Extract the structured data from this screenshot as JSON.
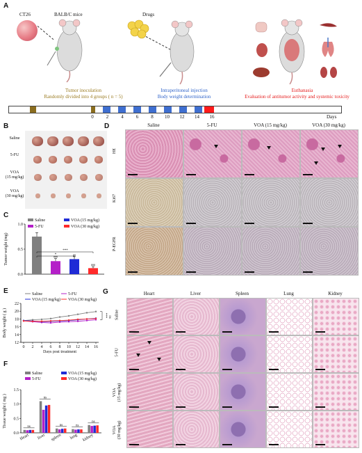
{
  "panels": {
    "a": "A",
    "b": "B",
    "c": "C",
    "d": "D",
    "e": "E",
    "f": "F",
    "g": "G"
  },
  "panel_a": {
    "cell_line": "CT26",
    "mice": "BALB/C mice",
    "drugs": "Drugs",
    "phase1_line1": "Tumor inoculation",
    "phase1_line2": "Randomly divided into  4 groups ( n = 5)",
    "phase2_line1": "Intraperitoneal injection",
    "phase2_line2": "Body weight determination",
    "phase3_line1": "Euthanasia",
    "phase3_line2": "Evaluation of antitumor activity and systemic toxicity",
    "ticks": [
      "0",
      "2",
      "4",
      "6",
      "8",
      "10",
      "12",
      "14",
      "16"
    ],
    "days_label": "Days",
    "colors": {
      "inoculation": "#8a6d1f",
      "injection": "#3f6fd0",
      "euthanasia": "#ff1a1a",
      "phase1_text": "#9a7b20",
      "phase2_text": "#2f63c9",
      "phase3_text": "#e51919"
    }
  },
  "panel_b": {
    "rows": [
      "Saline",
      "5-FU",
      "VOA\n(15 mg/kg)",
      "VOA\n(30 mg/kg)"
    ]
  },
  "panel_c": {
    "ylabel": "Tumor weight (mg)",
    "legend": [
      {
        "name": "Saline",
        "color": "#808080"
      },
      {
        "name": "VOA (15 mg/kg)",
        "color": "#1f2bd6"
      },
      {
        "name": "5-FU",
        "color": "#b41fc8"
      },
      {
        "name": "VOA (30 mg/kg)",
        "color": "#ff2a2a"
      }
    ],
    "sig_labels": [
      "***",
      "*"
    ],
    "bar_sig": [
      "",
      "###",
      "##",
      "###"
    ]
  },
  "panel_d": {
    "columns": [
      "Saline",
      "5-FU",
      "VOA (15 mg/kg)",
      "VOA (30 mg/kg)"
    ],
    "rows": [
      "HE",
      "Ki67",
      "P-EGFR"
    ]
  },
  "panel_e": {
    "legend": [
      "Saline",
      "5-FU",
      "VOA (15 mg/kg)",
      "VOA (30 mg/kg)"
    ],
    "ylabel": "Body weight ( g )",
    "xlabel": "Days post treatment",
    "sig_labels": [
      "***",
      "ns"
    ]
  },
  "panel_f": {
    "ylabel": "Tissue weight  ( mg )",
    "legend": [
      "Saline",
      "VOA (15 mg/kg)",
      "5-FU",
      "VOA (30 mg/kg)"
    ],
    "sig_label": "ns"
  },
  "panel_g": {
    "columns": [
      "Heart",
      "Liver",
      "Spleen",
      "Lung",
      "Kidney"
    ],
    "rows": [
      "Saline",
      "5-FU",
      "VOA\n(15 mg/kg)",
      "VOA\n(30 mg/kg)"
    ]
  },
  "chart_data": [
    {
      "type": "bar",
      "id": "tumor-weight",
      "categories": [
        "Saline",
        "5-FU",
        "VOA (15 mg/kg)",
        "VOA (30 mg/kg)"
      ],
      "values": [
        0.75,
        0.26,
        0.3,
        0.12
      ],
      "errors": [
        0.08,
        0.05,
        0.05,
        0.03
      ],
      "colors": [
        "#808080",
        "#b41fc8",
        "#1f2bd6",
        "#ff2a2a"
      ],
      "ylabel": "Tumor weight (mg)",
      "ylim": [
        0,
        1.0
      ],
      "yticks": [
        "0.0",
        "0.5",
        "1.0"
      ]
    },
    {
      "type": "line",
      "id": "body-weight",
      "x": [
        0,
        2,
        4,
        6,
        8,
        10,
        12,
        14,
        16
      ],
      "xticks": [
        "0",
        "2",
        "4",
        "6",
        "8",
        "10",
        "12",
        "14",
        "16"
      ],
      "series": [
        {
          "name": "Saline",
          "color": "#808080",
          "values": [
            17.6,
            17.8,
            17.9,
            18.1,
            18.5,
            18.8,
            19.2,
            19.6,
            19.9
          ]
        },
        {
          "name": "5-FU",
          "color": "#b41fc8",
          "values": [
            17.5,
            17.3,
            17.1,
            17.0,
            17.2,
            17.3,
            17.4,
            17.6,
            17.8
          ]
        },
        {
          "name": "VOA (15 mg/kg)",
          "color": "#1f2bd6",
          "values": [
            17.6,
            17.5,
            17.3,
            17.4,
            17.5,
            17.6,
            17.8,
            18.0,
            18.2
          ]
        },
        {
          "name": "VOA (30 mg/kg)",
          "color": "#ff2a2a",
          "values": [
            17.5,
            17.4,
            17.4,
            17.5,
            17.6,
            17.7,
            17.9,
            18.0,
            18.1
          ]
        }
      ],
      "ylabel": "Body weight ( g )",
      "xlabel": "Days post treatment",
      "ylim": [
        12,
        22
      ],
      "yticks": [
        "12",
        "14",
        "16",
        "18",
        "20",
        "22"
      ]
    },
    {
      "type": "bar",
      "id": "tissue-weight",
      "categories": [
        "Heart",
        "liver",
        "spleen",
        "lung",
        "kidney"
      ],
      "series": [
        {
          "name": "Saline",
          "color": "#808080",
          "values": [
            0.1,
            1.1,
            0.15,
            0.13,
            0.27
          ]
        },
        {
          "name": "5-FU",
          "color": "#b41fc8",
          "values": [
            0.09,
            0.8,
            0.12,
            0.11,
            0.24
          ]
        },
        {
          "name": "VOA (15 mg/kg)",
          "color": "#1f2bd6",
          "values": [
            0.1,
            0.95,
            0.14,
            0.12,
            0.25
          ]
        },
        {
          "name": "VOA (30 mg/kg)",
          "color": "#ff2a2a",
          "values": [
            0.1,
            0.97,
            0.15,
            0.12,
            0.26
          ]
        }
      ],
      "ylabel": "Tissue weight  ( mg )",
      "ylim": [
        0,
        1.5
      ],
      "yticks": [
        "0.0",
        "0.5",
        "1.0",
        "1.5"
      ]
    }
  ]
}
